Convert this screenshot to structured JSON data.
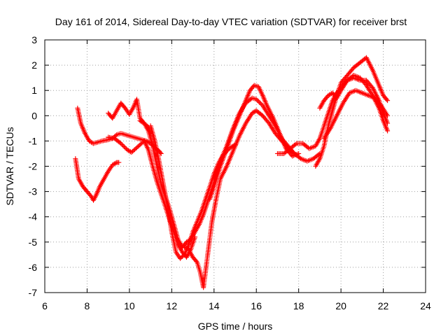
{
  "chart_data": {
    "type": "scatter",
    "title": "Day 161 of 2014, Sidereal Day-to-day VTEC variation (SDTVAR) for receiver brst",
    "xlabel": "GPS time / hours",
    "ylabel": "SDTVAR / TECUs",
    "xlim": [
      6,
      24
    ],
    "ylim": [
      -7,
      3
    ],
    "xticks": [
      6,
      8,
      10,
      12,
      14,
      16,
      18,
      20,
      22,
      24
    ],
    "yticks": [
      -7,
      -6,
      -5,
      -4,
      -3,
      -2,
      -1,
      0,
      1,
      2,
      3
    ],
    "grid": true,
    "marker": "+",
    "color": "#ff0000",
    "series": [
      {
        "name": "trace-a",
        "x": [
          7.45,
          7.6,
          7.8,
          8.0,
          8.2,
          8.3,
          8.45,
          8.6,
          8.8,
          9.0,
          9.2,
          9.4,
          9.5
        ],
        "y": [
          -1.7,
          -2.5,
          -2.8,
          -3.0,
          -3.2,
          -3.35,
          -3.1,
          -2.8,
          -2.5,
          -2.2,
          -1.95,
          -1.85,
          -1.85
        ]
      },
      {
        "name": "trace-b",
        "x": [
          7.55,
          7.7,
          7.9,
          8.1,
          8.3,
          8.5,
          8.7,
          9.0,
          9.2,
          9.4,
          9.6,
          9.8,
          10.0,
          10.2,
          10.4,
          10.6,
          10.8,
          11.0,
          11.2,
          11.4,
          11.5
        ],
        "y": [
          0.3,
          -0.3,
          -0.7,
          -1.0,
          -1.1,
          -1.05,
          -1.0,
          -0.95,
          -0.9,
          -0.75,
          -0.7,
          -0.75,
          -0.8,
          -0.85,
          -0.9,
          -0.95,
          -1.0,
          -1.1,
          -1.25,
          -1.4,
          -1.5
        ]
      },
      {
        "name": "trace-c",
        "x": [
          9.0,
          9.2,
          9.4,
          9.6,
          9.8,
          10.0,
          10.2,
          10.35,
          10.5,
          10.7,
          10.9,
          11.0
        ],
        "y": [
          0.1,
          -0.1,
          0.2,
          0.5,
          0.3,
          0.05,
          0.35,
          0.65,
          -0.1,
          -0.3,
          -0.45,
          -0.7
        ]
      },
      {
        "name": "trace-d",
        "x": [
          9.0,
          9.3,
          9.6,
          9.9,
          10.1,
          10.3,
          10.5,
          10.7,
          10.9,
          11.1,
          11.3,
          11.5,
          11.7,
          11.9,
          12.1,
          12.3,
          12.5,
          12.7,
          12.9,
          13.1
        ],
        "y": [
          -0.85,
          -0.9,
          -1.1,
          -1.35,
          -1.45,
          -1.3,
          -1.15,
          -1.0,
          -1.35,
          -2.0,
          -2.6,
          -3.1,
          -3.6,
          -4.1,
          -4.6,
          -5.1,
          -5.4,
          -5.6,
          -5.3,
          -4.8
        ]
      },
      {
        "name": "trace-e",
        "x": [
          10.5,
          10.7,
          10.9,
          11.1,
          11.3,
          11.5,
          11.7,
          11.9,
          12.1,
          12.3,
          12.5,
          12.7,
          12.9,
          13.1,
          13.3,
          13.5,
          13.7,
          13.9,
          14.1,
          14.3
        ],
        "y": [
          -0.2,
          -0.3,
          -0.6,
          -1.2,
          -2.0,
          -2.7,
          -3.2,
          -3.7,
          -4.3,
          -4.9,
          -5.2,
          -5.0,
          -4.9,
          -4.6,
          -4.3,
          -3.9,
          -3.4,
          -2.9,
          -2.4,
          -1.8
        ]
      },
      {
        "name": "trace-f",
        "x": [
          11.0,
          11.2,
          11.4,
          11.6,
          11.8,
          12.0,
          12.2,
          12.4,
          12.6,
          12.8,
          13.0,
          13.2,
          13.4,
          13.6,
          13.8,
          14.0,
          14.2,
          14.4,
          14.6,
          14.8,
          15.0
        ],
        "y": [
          -0.4,
          -1.0,
          -1.8,
          -2.7,
          -3.6,
          -4.6,
          -5.4,
          -5.65,
          -5.5,
          -5.1,
          -4.6,
          -4.2,
          -3.8,
          -3.3,
          -2.8,
          -2.3,
          -1.9,
          -1.6,
          -1.4,
          -1.25,
          -1.15
        ]
      },
      {
        "name": "trace-g",
        "x": [
          12.6,
          12.8,
          13.0,
          13.2,
          13.35,
          13.5,
          13.7,
          13.9,
          14.1,
          14.3,
          14.6,
          14.9,
          15.2,
          15.5,
          15.8,
          16.0,
          16.3,
          16.6,
          16.9,
          17.2,
          17.5,
          17.8
        ],
        "y": [
          -5.2,
          -5.3,
          -5.6,
          -5.8,
          -6.2,
          -6.8,
          -5.5,
          -4.2,
          -3.3,
          -2.5,
          -2.0,
          -1.4,
          -0.8,
          -0.3,
          0.1,
          0.2,
          0.0,
          -0.3,
          -0.7,
          -1.0,
          -1.3,
          -1.5
        ]
      },
      {
        "name": "trace-h",
        "x": [
          13.8,
          14.0,
          14.3,
          14.6,
          14.9,
          15.2,
          15.5,
          15.7,
          15.9,
          16.1,
          16.3,
          16.5,
          16.8,
          17.1,
          17.4,
          17.7,
          18.0
        ],
        "y": [
          -3.3,
          -2.8,
          -2.0,
          -1.3,
          -0.6,
          0.0,
          0.6,
          1.0,
          1.2,
          1.15,
          0.8,
          0.4,
          -0.1,
          -0.7,
          -1.3,
          -1.6,
          -1.5
        ]
      },
      {
        "name": "trace-i",
        "x": [
          14.0,
          14.3,
          14.6,
          14.9,
          15.2,
          15.5,
          15.8,
          16.0,
          16.3,
          16.6,
          16.9,
          17.2,
          17.5,
          17.8,
          18.1,
          18.4,
          18.7,
          19.0
        ],
        "y": [
          -2.5,
          -1.8,
          -1.2,
          -0.5,
          0.1,
          0.5,
          0.7,
          0.65,
          0.4,
          0.0,
          -0.4,
          -0.9,
          -1.2,
          -1.5,
          -1.7,
          -1.8,
          -1.7,
          -1.5
        ]
      },
      {
        "name": "trace-j",
        "x": [
          17.0,
          17.3,
          17.6,
          17.9,
          18.2,
          18.5,
          18.8,
          19.0,
          19.2,
          19.4,
          19.6,
          19.8,
          20.0,
          20.3,
          20.6,
          20.9,
          21.2,
          21.5,
          21.8,
          22.0,
          22.2
        ],
        "y": [
          -1.5,
          -1.5,
          -1.3,
          -1.1,
          -1.1,
          -1.3,
          -1.2,
          -0.9,
          -0.4,
          0.1,
          0.6,
          0.9,
          1.1,
          1.4,
          1.6,
          1.5,
          1.2,
          0.8,
          0.3,
          -0.2,
          -0.6
        ]
      },
      {
        "name": "trace-k",
        "x": [
          18.8,
          19.0,
          19.2,
          19.4,
          19.6,
          19.8,
          20.0,
          20.3,
          20.6,
          20.9,
          21.2,
          21.5,
          21.8,
          22.0,
          22.2
        ],
        "y": [
          -2.0,
          -1.7,
          -1.2,
          -0.4,
          0.2,
          0.8,
          1.3,
          1.6,
          1.9,
          2.1,
          2.3,
          1.8,
          1.2,
          0.8,
          0.6
        ]
      },
      {
        "name": "trace-l",
        "x": [
          19.0,
          19.2,
          19.4,
          19.6,
          19.8,
          20.0,
          20.3,
          20.6,
          20.9,
          21.2,
          21.5,
          21.8,
          22.0,
          22.2
        ],
        "y": [
          0.3,
          0.6,
          0.8,
          0.9,
          0.7,
          1.0,
          1.4,
          1.5,
          1.4,
          1.4,
          1.1,
          0.6,
          0.1,
          -0.3
        ]
      },
      {
        "name": "trace-m",
        "x": [
          19.2,
          19.5,
          19.8,
          20.1,
          20.4,
          20.7,
          21.0,
          21.3,
          21.6,
          21.9,
          22.2
        ],
        "y": [
          -0.9,
          -0.5,
          0.0,
          0.5,
          0.9,
          1.0,
          0.9,
          0.8,
          0.7,
          0.4,
          0.0
        ]
      }
    ]
  }
}
